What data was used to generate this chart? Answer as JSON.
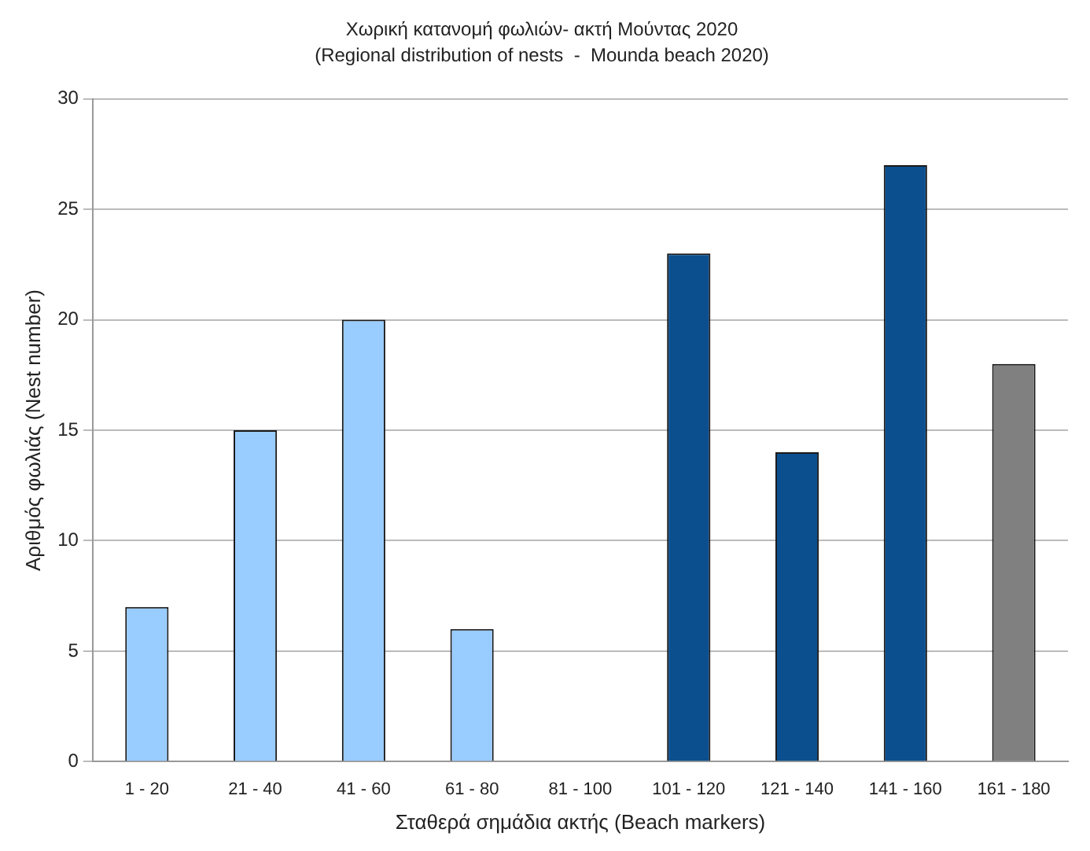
{
  "chart_data": {
    "type": "bar",
    "title": "Χωρική κατανομή φωλιών- ακτή Μούντας 2020",
    "subtitle": "(Regional distribution of nests  -  Mounda beach 2020)",
    "xlabel": "Σταθερά σημάδια ακτής (Beach markers)",
    "ylabel": "Αριθμός φωλιάς (Nest number)",
    "categories": [
      "1 - 20",
      "21 - 40",
      "41 - 60",
      "61 - 80",
      "81 - 100",
      "101 - 120",
      "121 - 140",
      "141 - 160",
      "161 - 180"
    ],
    "values": [
      7,
      15,
      20,
      6,
      0,
      23,
      14,
      27,
      18
    ],
    "colors": [
      "#99ccff",
      "#99ccff",
      "#99ccff",
      "#99ccff",
      "#99ccff",
      "#0b4f8f",
      "#0b4f8f",
      "#0b4f8f",
      "#808080"
    ],
    "ylim": [
      0,
      30
    ],
    "yticks": [
      0,
      5,
      10,
      15,
      20,
      25,
      30
    ],
    "grid": "y",
    "legend": false
  }
}
